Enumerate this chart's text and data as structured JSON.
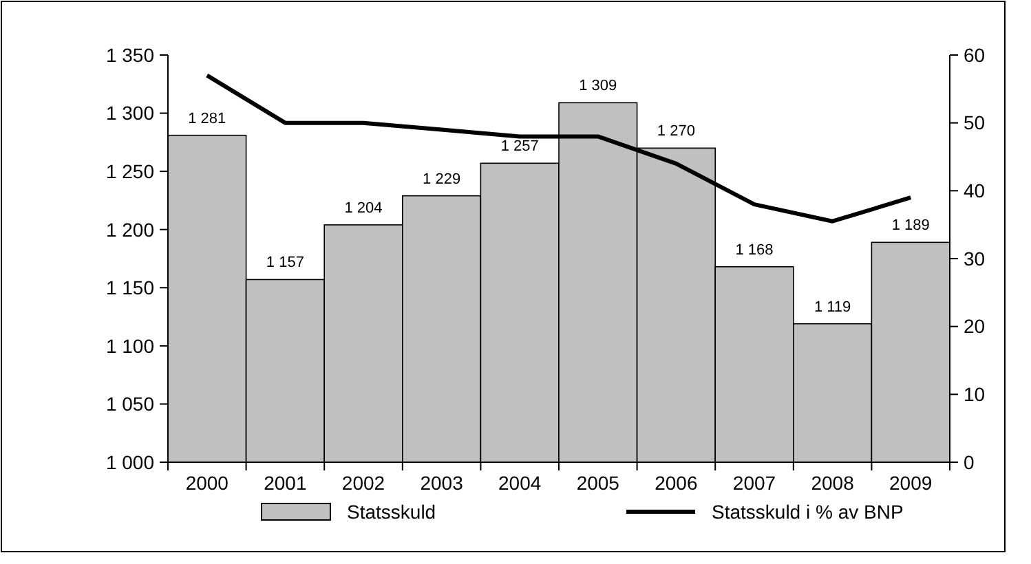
{
  "chart_data": {
    "type": "bar",
    "categories": [
      "2000",
      "2001",
      "2002",
      "2003",
      "2004",
      "2005",
      "2006",
      "2007",
      "2008",
      "2009"
    ],
    "series": [
      {
        "name": "Statsskuld",
        "color": "#c0c0c0",
        "values": [
          1281,
          1157,
          1204,
          1229,
          1257,
          1309,
          1270,
          1168,
          1119,
          1189
        ],
        "value_labels": [
          "1 281",
          "1 157",
          "1 204",
          "1 229",
          "1 257",
          "1 309",
          "1 270",
          "1 168",
          "1 119",
          "1 189"
        ]
      },
      {
        "name": "Statsskuld i % av BNP",
        "type": "line",
        "axis": "y2",
        "color": "#000000",
        "values": [
          57,
          50,
          50,
          49,
          48,
          48,
          44,
          38,
          35.5,
          39
        ]
      }
    ],
    "ylim": [
      1000,
      1350
    ],
    "yticks": [
      {
        "value": 1000,
        "label": "1 000"
      },
      {
        "value": 1050,
        "label": "1 050"
      },
      {
        "value": 1100,
        "label": "1 100"
      },
      {
        "value": 1150,
        "label": "1 150"
      },
      {
        "value": 1200,
        "label": "1 200"
      },
      {
        "value": 1250,
        "label": "1 250"
      },
      {
        "value": 1300,
        "label": "1 300"
      },
      {
        "value": 1350,
        "label": "1 350"
      }
    ],
    "y2lim": [
      0,
      60
    ],
    "y2ticks": [
      0,
      10,
      20,
      30,
      40,
      50,
      60
    ],
    "grid": false,
    "legend": "bottom",
    "marker": "none",
    "line_style": "solid"
  }
}
